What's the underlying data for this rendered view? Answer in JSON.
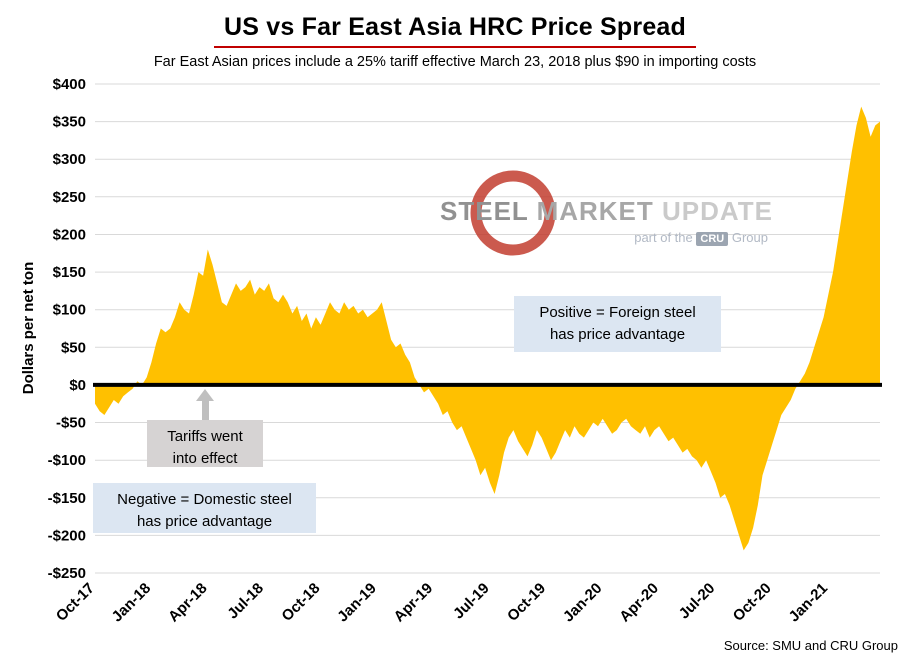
{
  "header": {
    "title": "US vs Far East Asia HRC Price Spread",
    "subtitle": "Far East Asian prices include a 25% tariff effective March 23, 2018 plus $90 in importing costs"
  },
  "source": "Source: SMU and CRU Group",
  "watermark": {
    "word1": "STEEL",
    "word2": "MARKET",
    "word3": "UPDATE",
    "tagline_prefix": "part of the",
    "cru": "CRU",
    "tagline_suffix": "Group",
    "ring_color": "#c0392b"
  },
  "annotations": {
    "positive": {
      "line1": "Positive = Foreign steel",
      "line2": "has price advantage"
    },
    "tariffs": {
      "line1": "Tariffs went",
      "line2": "into effect"
    },
    "negative": {
      "line1": "Negative = Domestic steel",
      "line2": "has price advantage"
    }
  },
  "chart_data": {
    "type": "area",
    "title": "US vs Far East Asia HRC Price Spread",
    "subtitle": "Far East Asian prices include a 25% tariff effective March 23, 2018 plus $90 in importing costs",
    "xlabel": "",
    "ylabel": "Dollars per net ton",
    "ylim": [
      -250,
      400
    ],
    "grid": "horizontal",
    "legend": "none",
    "fill_color": "#FFC000",
    "zero_line_color": "#000000",
    "gridline_color": "#d9d9d9",
    "month_step": 0.25,
    "y_ticks": [
      {
        "value": 400,
        "label": "$400"
      },
      {
        "value": 350,
        "label": "$350"
      },
      {
        "value": 300,
        "label": "$300"
      },
      {
        "value": 250,
        "label": "$250"
      },
      {
        "value": 200,
        "label": "$200"
      },
      {
        "value": 150,
        "label": "$150"
      },
      {
        "value": 100,
        "label": "$100"
      },
      {
        "value": 50,
        "label": "$50"
      },
      {
        "value": 0,
        "label": "$0"
      },
      {
        "value": -50,
        "label": "-$50"
      },
      {
        "value": -100,
        "label": "-$100"
      },
      {
        "value": -150,
        "label": "-$150"
      },
      {
        "value": -200,
        "label": "-$200"
      },
      {
        "value": -250,
        "label": "-$250"
      }
    ],
    "x_ticks": [
      {
        "month": 0,
        "label": "Oct-17"
      },
      {
        "month": 3,
        "label": "Jan-18"
      },
      {
        "month": 6,
        "label": "Apr-18"
      },
      {
        "month": 9,
        "label": "Jul-18"
      },
      {
        "month": 12,
        "label": "Oct-18"
      },
      {
        "month": 15,
        "label": "Jan-19"
      },
      {
        "month": 18,
        "label": "Apr-19"
      },
      {
        "month": 21,
        "label": "Jul-19"
      },
      {
        "month": 24,
        "label": "Oct-19"
      },
      {
        "month": 27,
        "label": "Jan-20"
      },
      {
        "month": 30,
        "label": "Apr-20"
      },
      {
        "month": 33,
        "label": "Jul-20"
      },
      {
        "month": 36,
        "label": "Oct-20"
      },
      {
        "month": 39,
        "label": "Jan-21"
      }
    ],
    "values": [
      -25,
      -35,
      -40,
      -30,
      -20,
      -25,
      -15,
      -10,
      -5,
      5,
      0,
      10,
      30,
      55,
      75,
      70,
      75,
      90,
      110,
      100,
      95,
      120,
      150,
      145,
      180,
      160,
      135,
      110,
      105,
      120,
      135,
      125,
      130,
      140,
      120,
      130,
      125,
      135,
      115,
      110,
      120,
      110,
      95,
      105,
      85,
      95,
      75,
      90,
      80,
      95,
      110,
      100,
      95,
      110,
      100,
      105,
      95,
      100,
      90,
      95,
      100,
      110,
      85,
      60,
      50,
      55,
      40,
      30,
      10,
      0,
      -10,
      -5,
      -15,
      -25,
      -40,
      -35,
      -50,
      -60,
      -55,
      -70,
      -85,
      -100,
      -120,
      -110,
      -130,
      -145,
      -120,
      -90,
      -70,
      -60,
      -75,
      -85,
      -95,
      -80,
      -60,
      -70,
      -85,
      -100,
      -90,
      -75,
      -60,
      -70,
      -55,
      -65,
      -70,
      -60,
      -50,
      -55,
      -45,
      -55,
      -65,
      -60,
      -50,
      -45,
      -55,
      -60,
      -65,
      -55,
      -70,
      -60,
      -55,
      -65,
      -75,
      -70,
      -80,
      -90,
      -85,
      -95,
      -100,
      -110,
      -100,
      -115,
      -130,
      -150,
      -145,
      -160,
      -180,
      -200,
      -220,
      -210,
      -190,
      -160,
      -120,
      -100,
      -80,
      -60,
      -40,
      -30,
      -20,
      -5,
      5,
      15,
      30,
      50,
      70,
      90,
      120,
      150,
      190,
      230,
      270,
      310,
      345,
      370,
      355,
      330,
      345,
      350
    ]
  }
}
